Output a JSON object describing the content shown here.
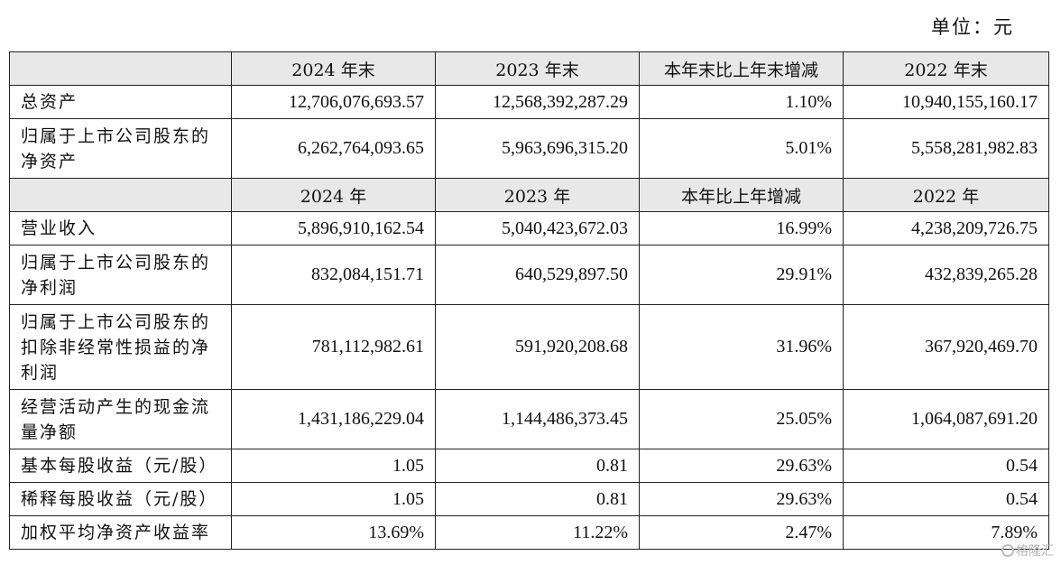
{
  "unit_label": "单位：元",
  "header1": {
    "blank": "",
    "c1": "2024 年末",
    "c2": "2023 年末",
    "c3": "本年末比上年末增减",
    "c4": "2022 年末"
  },
  "header2": {
    "blank": "",
    "c1": "2024 年",
    "c2": "2023 年",
    "c3": "本年比上年增减",
    "c4": "2022 年"
  },
  "balance_rows": [
    {
      "label": "总资产",
      "v2024": "12,706,076,693.57",
      "v2023": "12,568,392,287.29",
      "change": "1.10%",
      "v2022": "10,940,155,160.17"
    },
    {
      "label": "归属于上市公司股东的净资产",
      "v2024": "6,262,764,093.65",
      "v2023": "5,963,696,315.20",
      "change": "5.01%",
      "v2022": "5,558,281,982.83"
    }
  ],
  "income_rows": [
    {
      "label": "营业收入",
      "v2024": "5,896,910,162.54",
      "v2023": "5,040,423,672.03",
      "change": "16.99%",
      "v2022": "4,238,209,726.75"
    },
    {
      "label": "归属于上市公司股东的净利润",
      "v2024": "832,084,151.71",
      "v2023": "640,529,897.50",
      "change": "29.91%",
      "v2022": "432,839,265.28"
    },
    {
      "label": "归属于上市公司股东的扣除非经常性损益的净利润",
      "v2024": "781,112,982.61",
      "v2023": "591,920,208.68",
      "change": "31.96%",
      "v2022": "367,920,469.70"
    },
    {
      "label": "经营活动产生的现金流量净额",
      "v2024": "1,431,186,229.04",
      "v2023": "1,144,486,373.45",
      "change": "25.05%",
      "v2022": "1,064,087,691.20"
    },
    {
      "label": "基本每股收益（元/股）",
      "v2024": "1.05",
      "v2023": "0.81",
      "change": "29.63%",
      "v2022": "0.54"
    },
    {
      "label": "稀释每股收益（元/股）",
      "v2024": "1.05",
      "v2023": "0.81",
      "change": "29.63%",
      "v2022": "0.54"
    },
    {
      "label": "加权平均净资产收益率",
      "v2024": "13.69%",
      "v2023": "11.22%",
      "change": "2.47%",
      "v2022": "7.89%"
    }
  ],
  "watermark": {
    "icon": "gelonghui-logo-icon",
    "text": "格隆汇"
  }
}
